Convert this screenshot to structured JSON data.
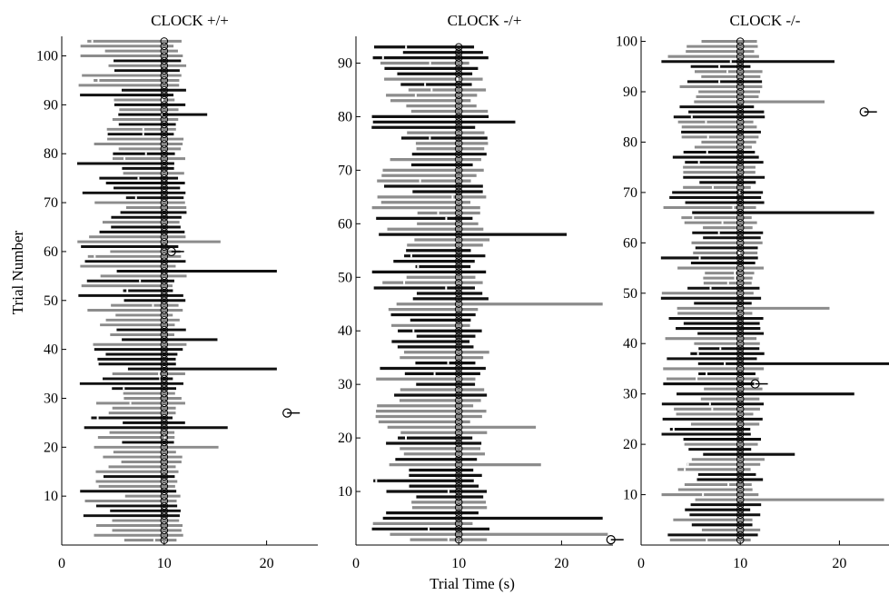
{
  "chart_data": {
    "type": "raster",
    "ylabel": "Trial Number",
    "xlabel": "Trial Time (s)",
    "panels": [
      {
        "title": "CLOCK +/+",
        "xlim": [
          0,
          25
        ],
        "ylim": [
          0,
          104
        ],
        "xticks": [
          0,
          10,
          20
        ],
        "yticks": [
          10,
          20,
          30,
          40,
          50,
          60,
          70,
          80,
          90,
          100
        ],
        "n_trials": 103,
        "cue_time": 10,
        "event_start_range": [
          1.5,
          6.5
        ],
        "event_end_range": [
          10.8,
          12.2
        ],
        "outliers": [
          {
            "trial": 27,
            "x": 22
          },
          {
            "trial": 60,
            "x": 10.7
          }
        ],
        "extended_trials": [
          {
            "trial": 20,
            "end": 15.3
          },
          {
            "trial": 24,
            "end": 16.2
          },
          {
            "trial": 36,
            "end": 21
          },
          {
            "trial": 42,
            "end": 15.2
          },
          {
            "trial": 56,
            "end": 21
          },
          {
            "trial": 62,
            "end": 15.5
          },
          {
            "trial": 88,
            "end": 14.2
          }
        ]
      },
      {
        "title": "CLOCK -/+",
        "xlim": [
          0,
          25
        ],
        "ylim": [
          0,
          95
        ],
        "xticks": [
          0,
          10,
          20
        ],
        "yticks": [
          10,
          20,
          30,
          40,
          50,
          60,
          70,
          80,
          90
        ],
        "n_trials": 93,
        "cue_time": 10,
        "event_start_range": [
          1.5,
          6
        ],
        "event_end_range": [
          11,
          13
        ],
        "outliers": [
          {
            "trial": 1,
            "x": 24.8
          }
        ],
        "extended_trials": [
          {
            "trial": 2,
            "end": 24.5
          },
          {
            "trial": 5,
            "end": 24
          },
          {
            "trial": 15,
            "end": 18
          },
          {
            "trial": 22,
            "end": 17.5
          },
          {
            "trial": 45,
            "end": 24
          },
          {
            "trial": 58,
            "end": 20.5
          },
          {
            "trial": 79,
            "end": 15.5
          }
        ]
      },
      {
        "title": "CLOCK -/-",
        "xlim": [
          0,
          25
        ],
        "ylim": [
          0,
          101
        ],
        "xticks": [
          0,
          10,
          20
        ],
        "yticks": [
          10,
          20,
          30,
          40,
          50,
          60,
          70,
          80,
          90,
          100
        ],
        "n_trials": 100,
        "cue_time": 10,
        "event_start_range": [
          2,
          6.5
        ],
        "event_end_range": [
          11,
          12.5
        ],
        "outliers": [
          {
            "trial": 86,
            "x": 22.5
          },
          {
            "trial": 32,
            "x": 11.5
          }
        ],
        "extended_trials": [
          {
            "trial": 9,
            "end": 24.5
          },
          {
            "trial": 18,
            "end": 15.5
          },
          {
            "trial": 30,
            "end": 21.5
          },
          {
            "trial": 36,
            "end": 25
          },
          {
            "trial": 47,
            "end": 19
          },
          {
            "trial": 66,
            "end": 23.5
          },
          {
            "trial": 88,
            "end": 18.5
          },
          {
            "trial": 96,
            "end": 19.5
          }
        ]
      }
    ]
  }
}
